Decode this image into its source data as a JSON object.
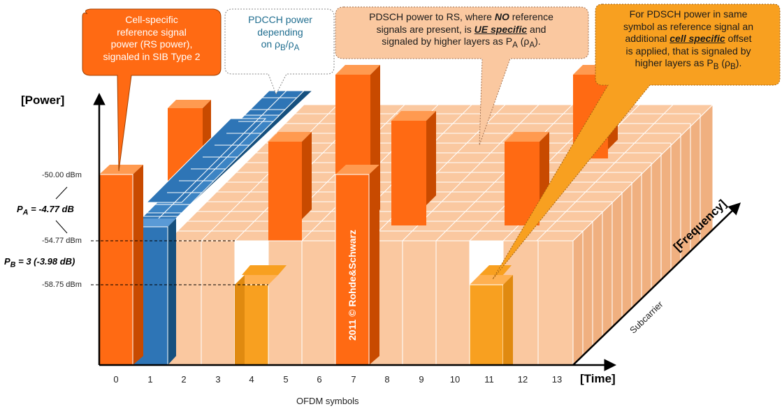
{
  "colors": {
    "rs": "#ff6a13",
    "pdcch": "#2e75b6",
    "pdsch": "#fac8a0",
    "pdsch_b": "#f8a020",
    "grid_line": "#ffffff"
  },
  "axes": {
    "power": "[Power]",
    "time": "[Time]",
    "frequency": "[Frequency]",
    "ofdm_symbols": "OFDM symbols",
    "subcarrier": "Subcarrier",
    "symbol_ticks": [
      "0",
      "1",
      "2",
      "3",
      "4",
      "5",
      "6",
      "7",
      "8",
      "9",
      "10",
      "11",
      "12",
      "13"
    ]
  },
  "levels": {
    "rs": "-50.00  dBm",
    "pa": "-54.77 dBm",
    "pb": "-58.75 dBm"
  },
  "ratios": {
    "pa_prefix": "P",
    "pa_sub": "A",
    "pa_value": " = -4.77 dB",
    "pb_prefix": "P",
    "pb_sub": "B",
    "pb_value": " = 3 (-3.98 dB)"
  },
  "copyright": "2011 © Rohde&Schwarz",
  "callouts": {
    "rs_power": {
      "lines": [
        "Cell-specific",
        "reference signal",
        "power (RS power),",
        "signaled in SIB Type 2"
      ]
    },
    "pdcch": {
      "line1": "PDCCH power",
      "line2": "depending",
      "line3_pre": "on ρ",
      "sub_b": "B",
      "slash": "/ρ",
      "sub_a": "A"
    },
    "pdsch_a": {
      "l1a": "PDSCH power to RS, where ",
      "l1b": "NO",
      "l1c": " reference",
      "l2a": "signals are present, is ",
      "l2b": "UE specific",
      "l2c": " and",
      "l3a": "signaled by higher layers as P",
      "l3sub": "A",
      "l3b": " (ρ",
      "l3sub2": "A",
      "l3c": ")."
    },
    "pdsch_b": {
      "l1": "For PDSCH power in same",
      "l2": "symbol as reference signal an",
      "l3a": "additional ",
      "l3b": "cell specific",
      "l3c": " offset",
      "l4": "is applied, that is signaled by",
      "l5a": "higher layers as P",
      "l5sub": "B",
      "l5b": " (ρ",
      "l5sub2": "B",
      "l5c": ")."
    }
  }
}
